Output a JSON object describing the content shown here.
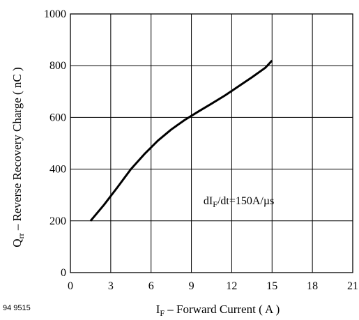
{
  "figure_id": "94 9515",
  "chart_data": {
    "type": "line",
    "title": "",
    "xlabel": {
      "main": "I",
      "sub": "F",
      "rest": " – Forward Current ( A )"
    },
    "ylabel": {
      "main": "Q",
      "sub": "rr",
      "rest": " – Reverse Recovery Charge ( nC )"
    },
    "xlim": [
      0,
      21
    ],
    "ylim": [
      0,
      1000
    ],
    "xticks": [
      0,
      3,
      6,
      9,
      12,
      15,
      18,
      21
    ],
    "yticks": [
      0,
      200,
      400,
      600,
      800,
      1000
    ],
    "grid": true,
    "annotation": {
      "main": "dI",
      "sub": "F",
      "rest": "/dt=150A/µs",
      "x": 9.9,
      "y": 280
    },
    "series": [
      {
        "color": "#000000",
        "x": [
          1.5,
          2.5,
          3.5,
          4.5,
          5.5,
          6.5,
          7.5,
          8.5,
          9.5,
          10.5,
          11.5,
          12.5,
          13.5,
          14.5,
          15.0
        ],
        "y": [
          200,
          262,
          330,
          400,
          458,
          510,
          553,
          590,
          622,
          653,
          685,
          720,
          755,
          792,
          820
        ]
      }
    ]
  }
}
